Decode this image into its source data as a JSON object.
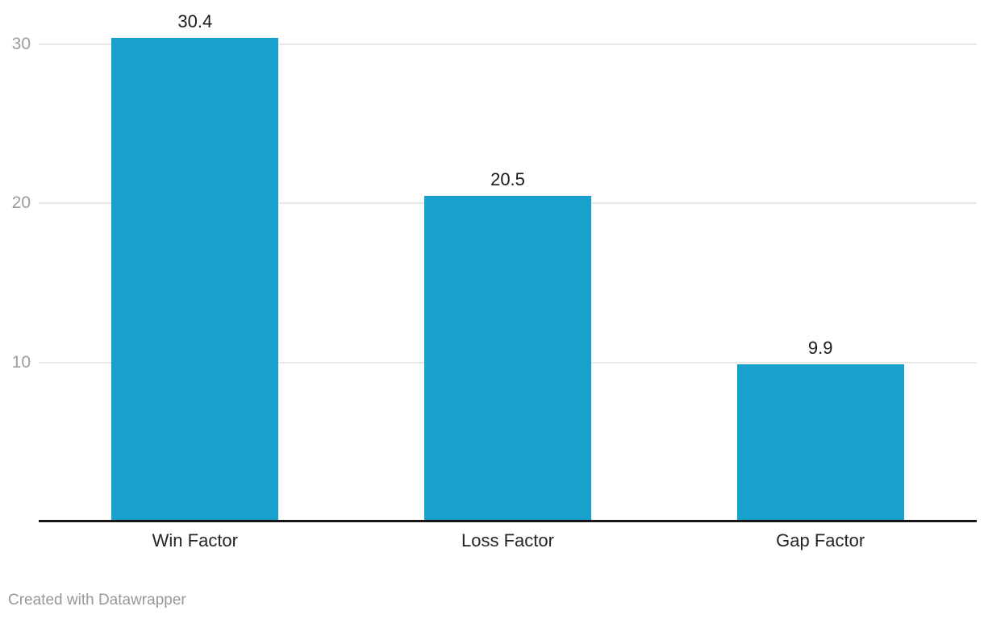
{
  "chart_data": {
    "type": "bar",
    "categories": [
      "Win Factor",
      "Loss Factor",
      "Gap Factor"
    ],
    "values": [
      30.4,
      20.5,
      9.9
    ],
    "value_labels": [
      "30.4",
      "20.5",
      "9.9"
    ],
    "title": "",
    "xlabel": "",
    "ylabel": "",
    "ylim": [
      0,
      32.8
    ],
    "yticks": [
      10,
      20,
      30
    ],
    "grid": "horizontal",
    "legend": "none"
  },
  "colors": {
    "bar": "#18a1cd",
    "gridline": "#e7e7e7",
    "axis_line": "#161616",
    "tick_label": "#9d9d9d",
    "value_label": "#1a1a1a",
    "category_label": "#252525",
    "footer_text": "#989898",
    "background": "#ffffff"
  },
  "footer": {
    "attribution": "Created with Datawrapper"
  }
}
